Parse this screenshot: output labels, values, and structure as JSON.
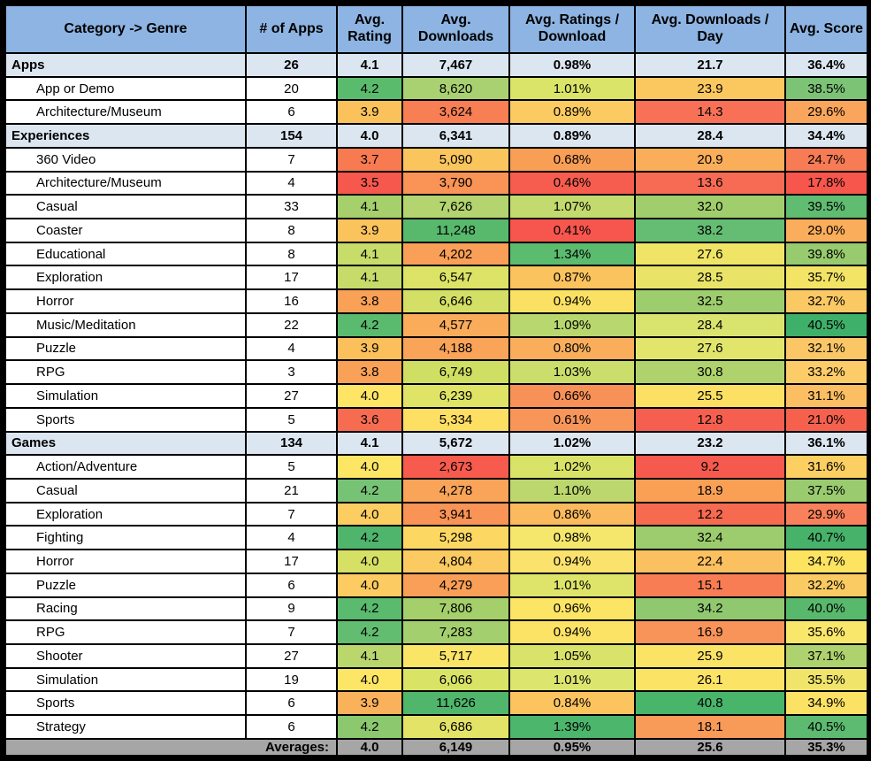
{
  "table": {
    "columns": [
      {
        "id": "category",
        "label": "Category -> Genre"
      },
      {
        "id": "apps",
        "label": "# of Apps"
      },
      {
        "id": "rating",
        "label": "Avg. Rating"
      },
      {
        "id": "downloads",
        "label": "Avg. Downloads"
      },
      {
        "id": "ratio",
        "label": "Avg. Ratings / Download"
      },
      {
        "id": "perday",
        "label": "Avg. Downloads / Day"
      },
      {
        "id": "score",
        "label": "Avg. Score"
      }
    ],
    "rows": [
      {
        "type": "section",
        "category": "Apps",
        "values": [
          "26",
          "4.1",
          "7,467",
          "0.98%",
          "21.7",
          "36.4%"
        ]
      },
      {
        "type": "genre",
        "category": "App or Demo",
        "values": [
          "20",
          "4.2",
          "8,620",
          "1.01%",
          "23.9",
          "38.5%"
        ],
        "colors": [
          "#5BBB6D",
          "#A9D171",
          "#D9E468",
          "#FBC75F",
          "#7CC376"
        ]
      },
      {
        "type": "genre",
        "category": "Architecture/Museum",
        "values": [
          "6",
          "3.9",
          "3,624",
          "0.89%",
          "14.3",
          "29.6%"
        ],
        "colors": [
          "#FBC25C",
          "#F87E54",
          "#FBCA60",
          "#F87157",
          "#F9A55B"
        ]
      },
      {
        "type": "section",
        "category": "Experiences",
        "values": [
          "154",
          "4.0",
          "6,341",
          "0.89%",
          "28.4",
          "34.4%"
        ]
      },
      {
        "type": "genre",
        "category": "360 Video",
        "values": [
          "7",
          "3.7",
          "5,090",
          "0.68%",
          "20.9",
          "24.7%"
        ],
        "colors": [
          "#F87A51",
          "#FBC55E",
          "#F99E55",
          "#FAAE5A",
          "#F77B55"
        ]
      },
      {
        "type": "genre",
        "category": "Architecture/Museum",
        "values": [
          "4",
          "3.5",
          "3,790",
          "0.46%",
          "13.6",
          "17.8%"
        ],
        "colors": [
          "#F6584E",
          "#F99356",
          "#F65D4F",
          "#F76B55",
          "#F6564B"
        ]
      },
      {
        "type": "genre",
        "category": "Casual",
        "values": [
          "33",
          "4.1",
          "7,626",
          "1.07%",
          "32.0",
          "39.5%"
        ],
        "colors": [
          "#A6D06B",
          "#B3D46F",
          "#C3DA6E",
          "#A1CE6C",
          "#60BC70"
        ]
      },
      {
        "type": "genre",
        "category": "Coaster",
        "values": [
          "8",
          "3.9",
          "11,248",
          "0.41%",
          "38.2",
          "29.0%"
        ],
        "colors": [
          "#FBC35C",
          "#58B96D",
          "#F6564E",
          "#64BD73",
          "#FAAD5A"
        ]
      },
      {
        "type": "genre",
        "category": "Educational",
        "values": [
          "8",
          "4.1",
          "4,202",
          "1.34%",
          "27.6",
          "39.8%"
        ],
        "colors": [
          "#C7DC69",
          "#F99F57",
          "#5BBB6E",
          "#EFE466",
          "#97CB6E"
        ]
      },
      {
        "type": "genre",
        "category": "Exploration",
        "values": [
          "17",
          "4.1",
          "6,547",
          "0.87%",
          "28.5",
          "35.7%"
        ],
        "colors": [
          "#C6DB69",
          "#DCE366",
          "#FBC35E",
          "#E9E468",
          "#F4E466"
        ]
      },
      {
        "type": "genre",
        "category": "Horror",
        "values": [
          "16",
          "3.8",
          "6,646",
          "0.94%",
          "32.5",
          "32.7%"
        ],
        "colors": [
          "#F9A156",
          "#D4E065",
          "#FBE163",
          "#9ECD6D",
          "#FBC964"
        ]
      },
      {
        "type": "genre",
        "category": "Music/Meditation",
        "values": [
          "22",
          "4.2",
          "4,577",
          "1.09%",
          "28.4",
          "40.5%"
        ],
        "colors": [
          "#5ABA6D",
          "#FAAC5A",
          "#B8D76E",
          "#D9E46F",
          "#3FB069"
        ]
      },
      {
        "type": "genre",
        "category": "Puzzle",
        "values": [
          "4",
          "3.9",
          "4,188",
          "0.80%",
          "27.6",
          "32.1%"
        ],
        "colors": [
          "#FBC05C",
          "#F9A458",
          "#FAAE5C",
          "#E2E56C",
          "#FBC766"
        ]
      },
      {
        "type": "genre",
        "category": "RPG",
        "values": [
          "3",
          "3.8",
          "6,749",
          "1.03%",
          "30.8",
          "33.2%"
        ],
        "colors": [
          "#F9A156",
          "#CFDF64",
          "#CBDE6B",
          "#AFD26C",
          "#FBCC67"
        ]
      },
      {
        "type": "genre",
        "category": "Simulation",
        "values": [
          "27",
          "4.0",
          "6,239",
          "0.66%",
          "25.5",
          "31.1%"
        ],
        "colors": [
          "#FEE566",
          "#DFE466",
          "#F89158",
          "#FBE063",
          "#FBBE63"
        ]
      },
      {
        "type": "genre",
        "category": "Sports",
        "values": [
          "5",
          "3.6",
          "5,334",
          "0.61%",
          "12.8",
          "21.0%"
        ],
        "colors": [
          "#F76B51",
          "#FDDF64",
          "#F89559",
          "#F65F4F",
          "#F6614E"
        ]
      },
      {
        "type": "section",
        "category": "Games",
        "values": [
          "134",
          "4.1",
          "5,672",
          "1.02%",
          "23.2",
          "36.1%"
        ]
      },
      {
        "type": "genre",
        "category": "Action/Adventure",
        "values": [
          "5",
          "4.0",
          "2,673",
          "1.02%",
          "9.2",
          "31.6%"
        ],
        "colors": [
          "#FDE566",
          "#F65B4E",
          "#D9E368",
          "#F6594E",
          "#FBCF61"
        ]
      },
      {
        "type": "genre",
        "category": "Casual",
        "values": [
          "21",
          "4.2",
          "4,278",
          "1.10%",
          "18.9",
          "37.5%"
        ],
        "colors": [
          "#77C376",
          "#F9A458",
          "#BCD76D",
          "#F9A055",
          "#9ACB6F"
        ]
      },
      {
        "type": "genre",
        "category": "Exploration",
        "values": [
          "7",
          "4.0",
          "3,941",
          "0.86%",
          "12.2",
          "29.9%"
        ],
        "colors": [
          "#FCCE62",
          "#F99356",
          "#FBBA5D",
          "#F66B50",
          "#F8815B"
        ]
      },
      {
        "type": "genre",
        "category": "Fighting",
        "values": [
          "4",
          "4.2",
          "5,298",
          "0.98%",
          "32.4",
          "40.7%"
        ],
        "colors": [
          "#4FB56C",
          "#FCD863",
          "#F4E76C",
          "#9CCC6E",
          "#47B26A"
        ]
      },
      {
        "type": "genre",
        "category": "Horror",
        "values": [
          "17",
          "4.0",
          "4,804",
          "0.94%",
          "22.4",
          "34.7%"
        ],
        "colors": [
          "#D6E065",
          "#FBCA60",
          "#FBE26D",
          "#FBC060",
          "#FCE360"
        ]
      },
      {
        "type": "genre",
        "category": "Puzzle",
        "values": [
          "6",
          "4.0",
          "4,279",
          "1.01%",
          "15.1",
          "32.2%"
        ],
        "colors": [
          "#FCCB61",
          "#F99F57",
          "#DEE46A",
          "#F87D55",
          "#FBCB63"
        ]
      },
      {
        "type": "genre",
        "category": "Racing",
        "values": [
          "9",
          "4.2",
          "7,806",
          "0.96%",
          "34.2",
          "40.0%"
        ],
        "colors": [
          "#5ABA6D",
          "#A5CF6B",
          "#FCE565",
          "#90C870",
          "#58B96D"
        ]
      },
      {
        "type": "genre",
        "category": "RPG",
        "values": [
          "7",
          "4.2",
          "7,283",
          "0.94%",
          "16.9",
          "35.6%"
        ],
        "colors": [
          "#63BD70",
          "#A4CF6E",
          "#FCE366",
          "#F8935A",
          "#F9E76C"
        ]
      },
      {
        "type": "genre",
        "category": "Shooter",
        "values": [
          "27",
          "4.1",
          "5,717",
          "1.05%",
          "25.9",
          "37.1%"
        ],
        "colors": [
          "#B9D76D",
          "#FBE567",
          "#D9E36A",
          "#FBE366",
          "#AED26D"
        ]
      },
      {
        "type": "genre",
        "category": "Simulation",
        "values": [
          "19",
          "4.0",
          "6,066",
          "1.01%",
          "26.1",
          "35.5%"
        ],
        "colors": [
          "#FDE566",
          "#D9E366",
          "#DCE56E",
          "#FBE366",
          "#F0E56A"
        ]
      },
      {
        "type": "genre",
        "category": "Sports",
        "values": [
          "6",
          "3.9",
          "11,626",
          "0.84%",
          "40.8",
          "34.9%"
        ],
        "colors": [
          "#FAB15B",
          "#4FB66C",
          "#FBC45F",
          "#48B56B",
          "#FBE164"
        ]
      },
      {
        "type": "genre",
        "category": "Strategy",
        "values": [
          "6",
          "4.2",
          "6,686",
          "1.39%",
          "18.1",
          "40.5%"
        ],
        "colors": [
          "#8BC86E",
          "#E3E467",
          "#4CB66C",
          "#F89A58",
          "#5CBB70"
        ]
      }
    ],
    "footer": {
      "label": "Averages:",
      "values": [
        "4.0",
        "6,149",
        "0.95%",
        "25.6",
        "35.3%"
      ]
    },
    "colors": {
      "header_bg": "#8DB4E2",
      "section_bg": "#DCE6F1",
      "footer_bg": "#A6A6A6",
      "border": "#000000",
      "scale_low": "#F6564B",
      "scale_mid": "#FDE566",
      "scale_high": "#3FB069"
    }
  }
}
